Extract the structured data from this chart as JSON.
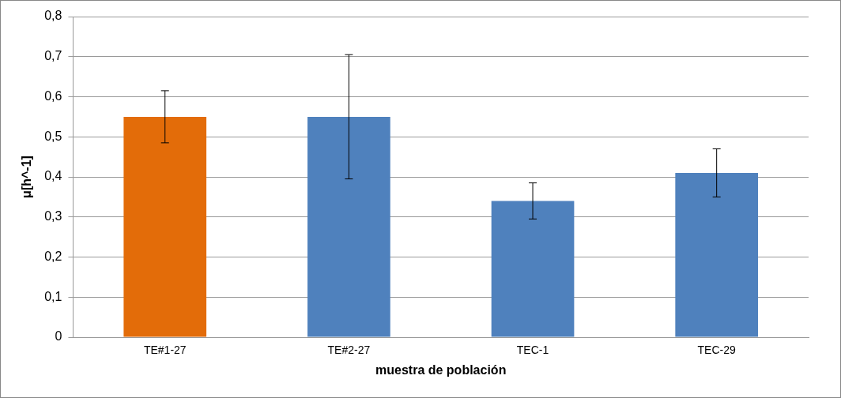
{
  "chart_data": {
    "type": "bar",
    "xlabel": "muestra de población",
    "ylabel": "μ[h^-1]",
    "categories": [
      "TE#1-27",
      "TE#2-27",
      "TEC-1",
      "TEC-29"
    ],
    "values": [
      0.55,
      0.55,
      0.34,
      0.41
    ],
    "colors": [
      "#e36c09",
      "#4f81bd",
      "#4f81bd",
      "#4f81bd"
    ],
    "errors": [
      0.065,
      0.155,
      0.045,
      0.06
    ],
    "ylim": [
      0,
      0.8
    ],
    "yticks": [
      {
        "value": 0,
        "label": "0"
      },
      {
        "value": 0.1,
        "label": "0,1"
      },
      {
        "value": 0.2,
        "label": "0,2"
      },
      {
        "value": 0.3,
        "label": "0,3"
      },
      {
        "value": 0.4,
        "label": "0,4"
      },
      {
        "value": 0.5,
        "label": "0,5"
      },
      {
        "value": 0.6,
        "label": "0,6"
      },
      {
        "value": 0.7,
        "label": "0,7"
      },
      {
        "value": 0.8,
        "label": "0,8"
      }
    ],
    "grid": "y",
    "legend": false
  }
}
